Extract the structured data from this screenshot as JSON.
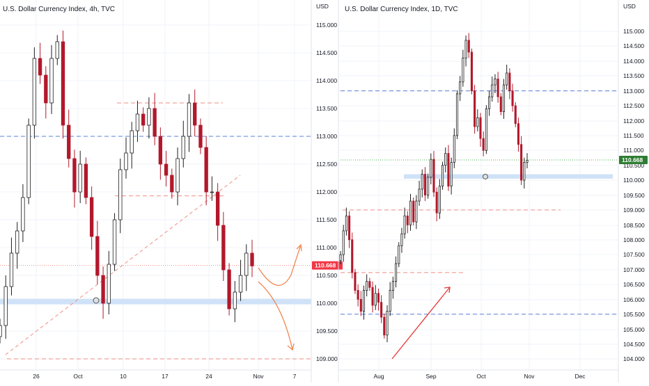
{
  "chart_data": [
    {
      "type": "candlestick",
      "title": "U.S. Dollar Currency Index, 4h, TVC",
      "unit_label": "USD",
      "ylim": [
        108.94,
        115.25
      ],
      "y_ticks": [
        "115.000",
        "114.500",
        "114.000",
        "113.500",
        "113.000",
        "112.500",
        "112.000",
        "111.500",
        "111.000",
        "110.500",
        "110.000",
        "109.500",
        "109.000"
      ],
      "x_ticks": [
        "26",
        "Oct",
        "10",
        "17",
        "24",
        "Nov",
        "7"
      ],
      "grid": true,
      "last_price": "110.668",
      "colors": {
        "up": "#1e1e1e",
        "down": "#b2182b",
        "price_tag": "#f23645",
        "support_band": "#cfe2f7",
        "blue_dash": "#5b7fd6",
        "red_dash": "#f28b82",
        "arrow": "#f0874f"
      },
      "closes": [
        109.6,
        110.3,
        110.9,
        111.3,
        111.9,
        113.2,
        114.4,
        114.1,
        113.6,
        114.4,
        114.7,
        113.2,
        112.6,
        112.0,
        112.5,
        111.9,
        111.2,
        110.5,
        110.0,
        110.7,
        111.5,
        112.4,
        112.7,
        113.1,
        113.4,
        113.2,
        113.5,
        113.0,
        112.5,
        112.3,
        112.0,
        112.6,
        113.0,
        113.6,
        113.2,
        112.8,
        112.0,
        112.0,
        111.4,
        110.6,
        109.9,
        110.2,
        110.5,
        110.9,
        110.67
      ],
      "levels": [
        113.0,
        113.6,
        111.93,
        110.68,
        109.0
      ],
      "support_band": [
        109.98,
        110.08
      ]
    },
    {
      "type": "candlestick",
      "title": "U.S. Dollar Currency Index, 1D, TVC",
      "unit_label": "USD",
      "ylim": [
        103.7,
        115.45
      ],
      "y_ticks": [
        "115.000",
        "114.500",
        "114.000",
        "113.500",
        "113.000",
        "112.500",
        "112.000",
        "111.500",
        "111.000",
        "110.500",
        "110.000",
        "109.500",
        "109.000",
        "108.500",
        "108.000",
        "107.500",
        "107.000",
        "106.500",
        "106.000",
        "105.500",
        "105.000",
        "104.500",
        "104.000"
      ],
      "x_ticks": [
        "Aug",
        "Sep",
        "Oct",
        "Nov",
        "Dec"
      ],
      "grid": true,
      "last_price": "110.668",
      "colors": {
        "price_tag": "#2e7d32"
      },
      "closes": [
        107.5,
        108.3,
        108.8,
        108.0,
        106.9,
        106.3,
        106.0,
        105.6,
        106.3,
        106.6,
        106.4,
        105.8,
        106.2,
        105.9,
        105.4,
        104.8,
        105.6,
        106.3,
        106.6,
        107.2,
        107.8,
        108.2,
        108.8,
        108.5,
        109.3,
        108.6,
        109.3,
        109.7,
        110.2,
        109.5,
        110.1,
        110.7,
        109.6,
        108.9,
        109.8,
        110.5,
        110.9,
        109.8,
        110.6,
        111.5,
        112.9,
        113.3,
        114.1,
        114.7,
        114.3,
        113.0,
        111.8,
        112.1,
        111.4,
        111.0,
        112.4,
        112.8,
        113.2,
        113.4,
        112.8,
        112.3,
        113.2,
        113.6,
        113.0,
        112.5,
        111.9,
        111.2,
        110.0,
        110.6,
        110.67
      ],
      "levels": [
        113.0,
        109.0,
        105.5,
        106.9
      ],
      "support_band": [
        110.05,
        110.2
      ]
    }
  ]
}
